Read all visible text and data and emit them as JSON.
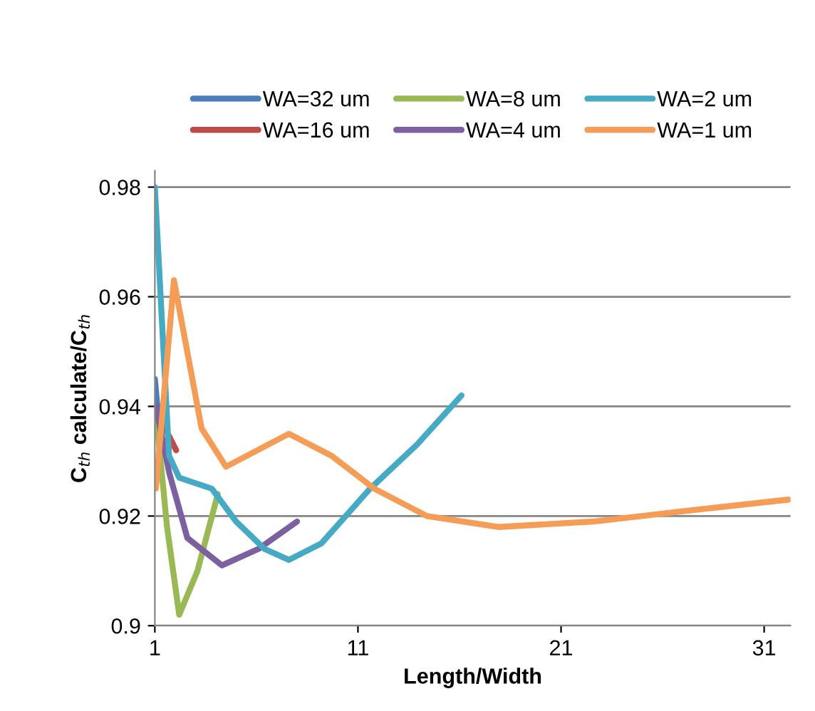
{
  "chart_data": {
    "type": "line",
    "xlabel": "Length/Width",
    "ylabel": "C$_{th}$ calculate/C$_{th}$",
    "xlim": [
      1,
      32.3
    ],
    "xticks": [
      1,
      11,
      21,
      31
    ],
    "ylim": [
      0.9,
      0.983
    ],
    "yticks": [
      0.9,
      0.92,
      0.94,
      0.96,
      0.98
    ],
    "grid": "y",
    "legend": "top",
    "line_style": "solid",
    "marker": "none",
    "series": [
      {
        "name": "WA=32 um",
        "color": "#4a7ebb",
        "x": [
          1.0,
          1.2
        ],
        "values": [
          0.945,
          0.937
        ]
      },
      {
        "name": "WA=16 um",
        "color": "#be4b48",
        "x": [
          1.0,
          1.5,
          2.05
        ],
        "values": [
          0.939,
          0.936,
          0.932
        ]
      },
      {
        "name": "WA=8 um",
        "color": "#98b954",
        "x": [
          1.05,
          1.6,
          2.2,
          3.1,
          4.1
        ],
        "values": [
          0.939,
          0.918,
          0.902,
          0.91,
          0.924
        ]
      },
      {
        "name": "WA=4 um",
        "color": "#7d60a0",
        "x": [
          1.05,
          1.7,
          2.6,
          4.3,
          6.1,
          8.0
        ],
        "values": [
          0.94,
          0.928,
          0.916,
          0.911,
          0.914,
          0.919
        ]
      },
      {
        "name": "WA=2 um",
        "color": "#46aac5",
        "x": [
          1.0,
          1.7,
          2.2,
          3.8,
          5.0,
          6.4,
          7.6,
          9.2,
          11.6,
          13.9,
          16.1
        ],
        "values": [
          0.98,
          0.931,
          0.927,
          0.925,
          0.919,
          0.914,
          0.912,
          0.915,
          0.925,
          0.933,
          0.942
        ]
      },
      {
        "name": "WA=1 um",
        "color": "#f59d56",
        "x": [
          1.05,
          1.94,
          3.3,
          4.5,
          7.6,
          9.7,
          11.8,
          14.4,
          17.9,
          22.6,
          27.3,
          32.2
        ],
        "values": [
          0.925,
          0.963,
          0.936,
          0.929,
          0.935,
          0.931,
          0.925,
          0.92,
          0.918,
          0.919,
          0.921,
          0.923
        ]
      }
    ]
  }
}
